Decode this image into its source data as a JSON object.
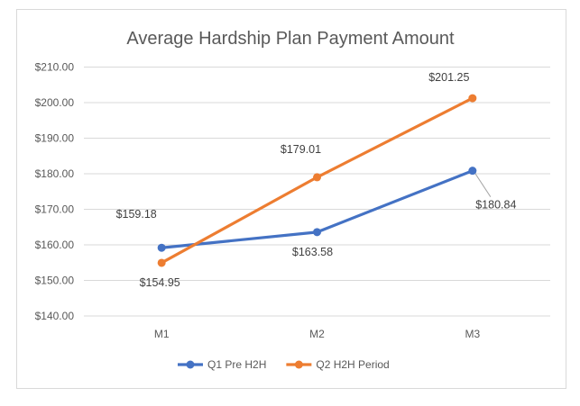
{
  "chart_data": {
    "type": "line",
    "title": "Average Hardship Plan Payment Amount",
    "xlabel": "",
    "ylabel": "",
    "categories": [
      "M1",
      "M2",
      "M3"
    ],
    "ylim": [
      140,
      210
    ],
    "y_ticks": [
      140,
      150,
      160,
      170,
      180,
      190,
      200,
      210
    ],
    "y_tick_labels": [
      "$140.00",
      "$150.00",
      "$160.00",
      "$170.00",
      "$180.00",
      "$190.00",
      "$200.00",
      "$210.00"
    ],
    "grid": true,
    "legend_position": "bottom",
    "series": [
      {
        "name": "Q1 Pre H2H",
        "color": "#4472c4",
        "values": [
          159.18,
          163.58,
          180.84
        ],
        "labels": [
          "$159.18",
          "$163.58",
          "$180.84"
        ]
      },
      {
        "name": "Q2 H2H Period",
        "color": "#ed7d31",
        "values": [
          154.95,
          179.01,
          201.25
        ],
        "labels": [
          "$154.95",
          "$179.01",
          "$201.25"
        ]
      }
    ]
  }
}
